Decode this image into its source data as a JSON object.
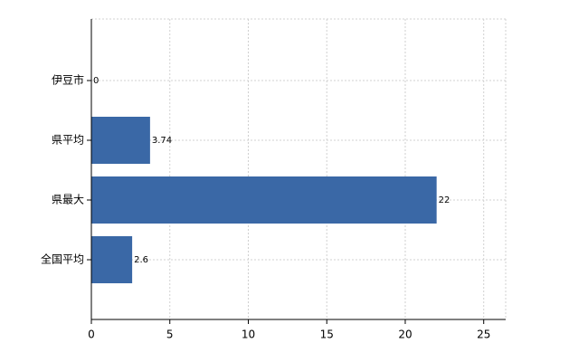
{
  "chart_data": {
    "type": "barh",
    "categories": [
      "伊豆市",
      "県平均",
      "県最大",
      "全国平均"
    ],
    "values": [
      0,
      3.74,
      22,
      2.6
    ],
    "color": "#3a68a6",
    "xlim": [
      0,
      26.4
    ],
    "xticks": [
      0,
      5,
      10,
      15,
      20,
      25
    ],
    "grid": true
  }
}
